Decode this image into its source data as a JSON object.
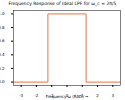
{
  "chart_data": {
    "type": "line",
    "title": "Frequency Response of Ideal LPF for ω_c = 2π/5",
    "x_label": "Frequency ω (RAD)",
    "x": [
      -3.5,
      -1.25,
      -1.25,
      1.25,
      1.25,
      3.5
    ],
    "values": [
      0,
      0,
      1,
      1,
      0,
      0
    ],
    "color": "#f0703a",
    "xlim": [
      -3.5,
      3.5
    ],
    "xticks": [
      -3,
      -2,
      -1,
      0,
      1,
      2,
      3
    ],
    "ylim": [
      -0.05,
      1.05
    ],
    "yticks": [
      {
        "value": 0,
        "label": "0.0"
      },
      {
        "value": 0.2,
        "label": "0.2"
      },
      {
        "value": 0.4,
        "label": "0.4"
      },
      {
        "value": 0.6,
        "label": "0.6"
      },
      {
        "value": 0.8,
        "label": "0.8"
      },
      {
        "value": 1,
        "label": "1.0"
      }
    ],
    "grid": false
  }
}
